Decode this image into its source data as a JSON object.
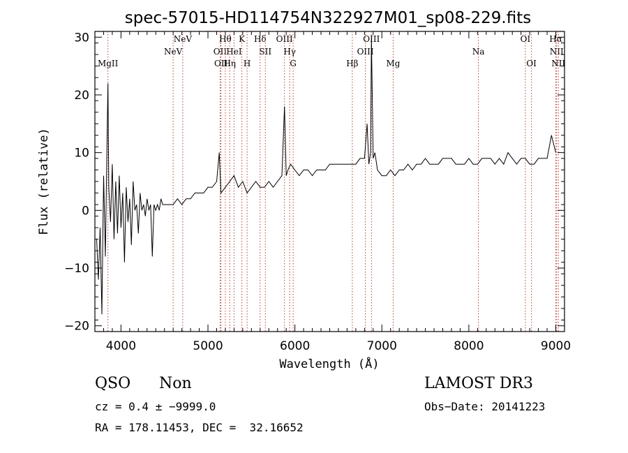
{
  "chart_data": {
    "type": "line",
    "title": "spec-57015-HD114754N322927M01_sp08-229.fits",
    "xlabel": "Wavelength (Å)",
    "ylabel": "Flux (relative)",
    "xlim": [
      3700,
      9100
    ],
    "ylim": [
      -21,
      31
    ],
    "xticks": [
      4000,
      5000,
      6000,
      7000,
      8000,
      9000
    ],
    "yticks": [
      -20,
      -10,
      0,
      10,
      20,
      30
    ],
    "series": [
      {
        "name": "spectrum",
        "x": [
          3720,
          3740,
          3760,
          3780,
          3800,
          3820,
          3840,
          3850,
          3860,
          3880,
          3900,
          3920,
          3940,
          3960,
          3980,
          4000,
          4020,
          4040,
          4060,
          4080,
          4100,
          4120,
          4140,
          4160,
          4180,
          4200,
          4220,
          4240,
          4260,
          4280,
          4300,
          4320,
          4340,
          4360,
          4380,
          4400,
          4420,
          4440,
          4460,
          4480,
          4500,
          4550,
          4600,
          4650,
          4700,
          4750,
          4800,
          4850,
          4900,
          4950,
          5000,
          5050,
          5100,
          5130,
          5150,
          5200,
          5250,
          5300,
          5350,
          5400,
          5450,
          5500,
          5550,
          5600,
          5650,
          5700,
          5750,
          5800,
          5850,
          5880,
          5900,
          5920,
          5950,
          6000,
          6050,
          6100,
          6150,
          6200,
          6250,
          6300,
          6350,
          6400,
          6450,
          6500,
          6550,
          6600,
          6650,
          6700,
          6750,
          6800,
          6830,
          6850,
          6870,
          6880,
          6900,
          6920,
          6950,
          7000,
          7050,
          7100,
          7150,
          7200,
          7250,
          7300,
          7350,
          7400,
          7450,
          7500,
          7550,
          7600,
          7650,
          7700,
          7750,
          7800,
          7850,
          7900,
          7950,
          8000,
          8050,
          8100,
          8150,
          8200,
          8250,
          8300,
          8350,
          8400,
          8450,
          8500,
          8550,
          8600,
          8650,
          8700,
          8750,
          8800,
          8850,
          8900,
          8950,
          9000
        ],
        "y": [
          -5,
          -12,
          -3,
          -18,
          6,
          -8,
          12,
          22,
          4,
          -2,
          8,
          -5,
          5,
          -4,
          6,
          -3,
          3,
          -9,
          4,
          -2,
          2,
          -6,
          5,
          0,
          1,
          -4,
          3,
          0,
          1,
          -1,
          2,
          0,
          1,
          -8,
          1,
          0,
          1,
          0,
          2,
          1,
          1,
          1,
          1,
          2,
          1,
          2,
          2,
          3,
          3,
          3,
          4,
          4,
          5,
          10,
          3,
          4,
          5,
          6,
          4,
          5,
          3,
          4,
          5,
          4,
          4,
          5,
          4,
          5,
          6,
          18,
          6,
          7,
          8,
          7,
          6,
          7,
          7,
          6,
          7,
          7,
          7,
          8,
          8,
          8,
          8,
          8,
          8,
          8,
          9,
          9,
          15,
          8,
          10,
          30,
          9,
          10,
          7,
          6,
          6,
          7,
          6,
          7,
          7,
          8,
          7,
          8,
          8,
          9,
          8,
          8,
          8,
          9,
          9,
          9,
          8,
          8,
          8,
          9,
          8,
          8,
          9,
          9,
          9,
          8,
          9,
          8,
          10,
          9,
          8,
          9,
          9,
          8,
          8,
          9,
          9,
          9,
          13,
          10
        ]
      }
    ],
    "lines": [
      {
        "label": "MgII",
        "x": 3850,
        "row": 3
      },
      {
        "label": "NeV",
        "x": 4600,
        "row": 2
      },
      {
        "label": "NeV",
        "x": 4710,
        "row": 1
      },
      {
        "label": "OII",
        "x": 5140,
        "row": 2
      },
      {
        "label": "OII",
        "x": 5150,
        "row": 3
      },
      {
        "label": "Hθ",
        "x": 5200,
        "row": 1
      },
      {
        "label": "Hη",
        "x": 5250,
        "row": 3
      },
      {
        "label": "HeI",
        "x": 5300,
        "row": 2
      },
      {
        "label": "K",
        "x": 5390,
        "row": 1
      },
      {
        "label": "H",
        "x": 5450,
        "row": 3
      },
      {
        "label": "Hδ",
        "x": 5600,
        "row": 1
      },
      {
        "label": "SII",
        "x": 5660,
        "row": 2
      },
      {
        "label": "OIII",
        "x": 5880,
        "row": 1
      },
      {
        "label": "Hγ",
        "x": 5940,
        "row": 2
      },
      {
        "label": "G",
        "x": 5980,
        "row": 3
      },
      {
        "label": "Hβ",
        "x": 6660,
        "row": 3
      },
      {
        "label": "OIII",
        "x": 6810,
        "row": 2
      },
      {
        "label": "OIII",
        "x": 6880,
        "row": 1
      },
      {
        "label": "Mg",
        "x": 7130,
        "row": 3
      },
      {
        "label": "Na",
        "x": 8110,
        "row": 2
      },
      {
        "label": "OI",
        "x": 8650,
        "row": 1
      },
      {
        "label": "OI",
        "x": 8720,
        "row": 3
      },
      {
        "label": "Hα",
        "x": 9000,
        "row": 1
      },
      {
        "label": "NII",
        "x": 9010,
        "row": 2
      },
      {
        "label": "NII",
        "x": 9030,
        "row": 3
      }
    ]
  },
  "info": {
    "class": "QSO",
    "subclass": "Non",
    "survey": "LAMOST DR3",
    "cz": "cz = 0.4 ± −9999.0",
    "obs_date": "Obs−Date: 20141223",
    "radec": "RA = 178.11453, DEC =  32.16652"
  },
  "colors": {
    "line_marker": "#c0392b",
    "spectrum": "#000000"
  }
}
